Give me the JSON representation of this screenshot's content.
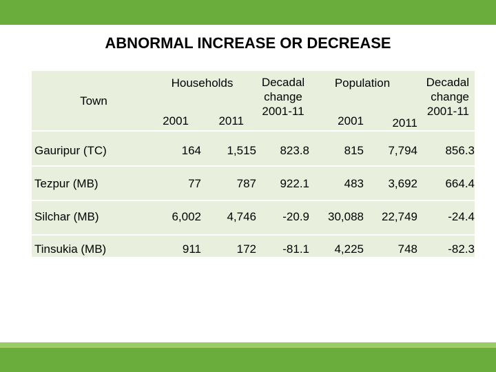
{
  "title": "ABNORMAL INCREASE OR DECREASE",
  "headers": {
    "town": "Town",
    "households": "Households",
    "population": "Population",
    "decadal_line1": "Decadal",
    "decadal_line2": "change",
    "decadal_line3": "2001-11",
    "year_2001": "2001",
    "year_2011": "2011"
  },
  "rows": [
    {
      "town": "Gauripur (TC)",
      "hh_2001": "164",
      "hh_2011": "1,515",
      "hh_change": "823.8",
      "pop_2001": "815",
      "pop_2011": "7,794",
      "pop_change": "856.3"
    },
    {
      "town": "Tezpur  (MB)",
      "hh_2001": "77",
      "hh_2011": "787",
      "hh_change": "922.1",
      "pop_2001": "483",
      "pop_2011": "3,692",
      "pop_change": "664.4"
    },
    {
      "town": "Silchar  (MB)",
      "hh_2001": "6,002",
      "hh_2011": "4,746",
      "hh_change": "-20.9",
      "pop_2001": "30,088",
      "pop_2011": "22,749",
      "pop_change": "-24.4"
    },
    {
      "town": "Tinsukia  (MB)",
      "hh_2001": "911",
      "hh_2011": "172",
      "hh_change": "-81.1",
      "pop_2001": "4,225",
      "pop_2011": "748",
      "pop_change": "-82.3"
    }
  ],
  "colors": {
    "accent": "#6aad3d",
    "accent_light": "#9ccc65",
    "table_bg": "#e8f0dd"
  }
}
